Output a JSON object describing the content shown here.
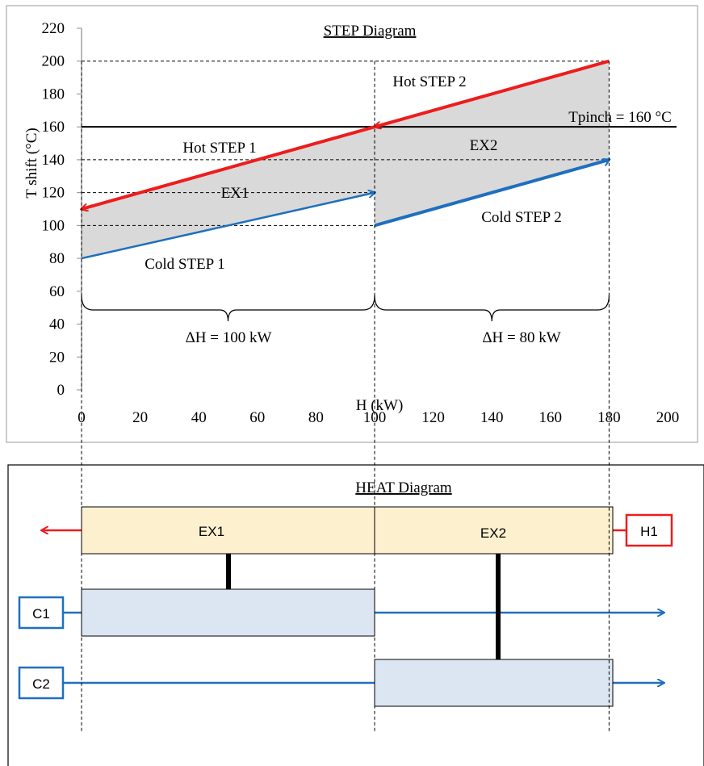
{
  "step_diagram": {
    "title": "STEP Diagram",
    "ylabel": "T shift (°C)",
    "xlabel": "H (kW)",
    "pinch_label": "Tpinch = 160 °C",
    "labels": {
      "hot_step_1": "Hot STEP 1",
      "hot_step_2": "Hot STEP 2",
      "cold_step_1": "Cold STEP 1",
      "cold_step_2": "Cold STEP 2",
      "ex1": "EX1",
      "ex2": "EX2",
      "dh1": "ΔH = 100 kW",
      "dh2": "ΔH = 80 kW"
    },
    "colors": {
      "hot": "#ee1c1c",
      "cold": "#1f6fbf",
      "shade": "#d9d9d9",
      "pinch": "#000000"
    }
  },
  "chart_data": {
    "type": "line",
    "title": "STEP Diagram",
    "xlabel": "H (kW)",
    "ylabel": "T shift (°C)",
    "xlim": [
      0,
      200
    ],
    "ylim": [
      0,
      220
    ],
    "xticks": [
      0,
      20,
      40,
      60,
      80,
      100,
      120,
      140,
      160,
      180,
      200
    ],
    "yticks": [
      0,
      20,
      40,
      60,
      80,
      100,
      120,
      140,
      160,
      180,
      200,
      220
    ],
    "series": [
      {
        "name": "Hot STEP 1",
        "x": [
          0,
          100
        ],
        "y": [
          110,
          160
        ]
      },
      {
        "name": "Hot STEP 2",
        "x": [
          100,
          180
        ],
        "y": [
          160,
          200
        ]
      },
      {
        "name": "Cold STEP 1",
        "x": [
          0,
          100
        ],
        "y": [
          80,
          120
        ]
      },
      {
        "name": "Cold STEP 2",
        "x": [
          100,
          180
        ],
        "y": [
          100,
          140
        ]
      }
    ],
    "pinch_temperature": 160,
    "grid": false
  },
  "heat_diagram": {
    "title": "HEAT Diagram",
    "exchangers": [
      "EX1",
      "EX2"
    ],
    "streams": {
      "hot": "H1",
      "cold1": "C1",
      "cold2": "C2"
    },
    "colors": {
      "hot_fill": "#fcf0cf",
      "cold_fill": "#dce6f2",
      "hot_line": "#ee1c1c",
      "cold_line": "#1f6fbf"
    }
  }
}
